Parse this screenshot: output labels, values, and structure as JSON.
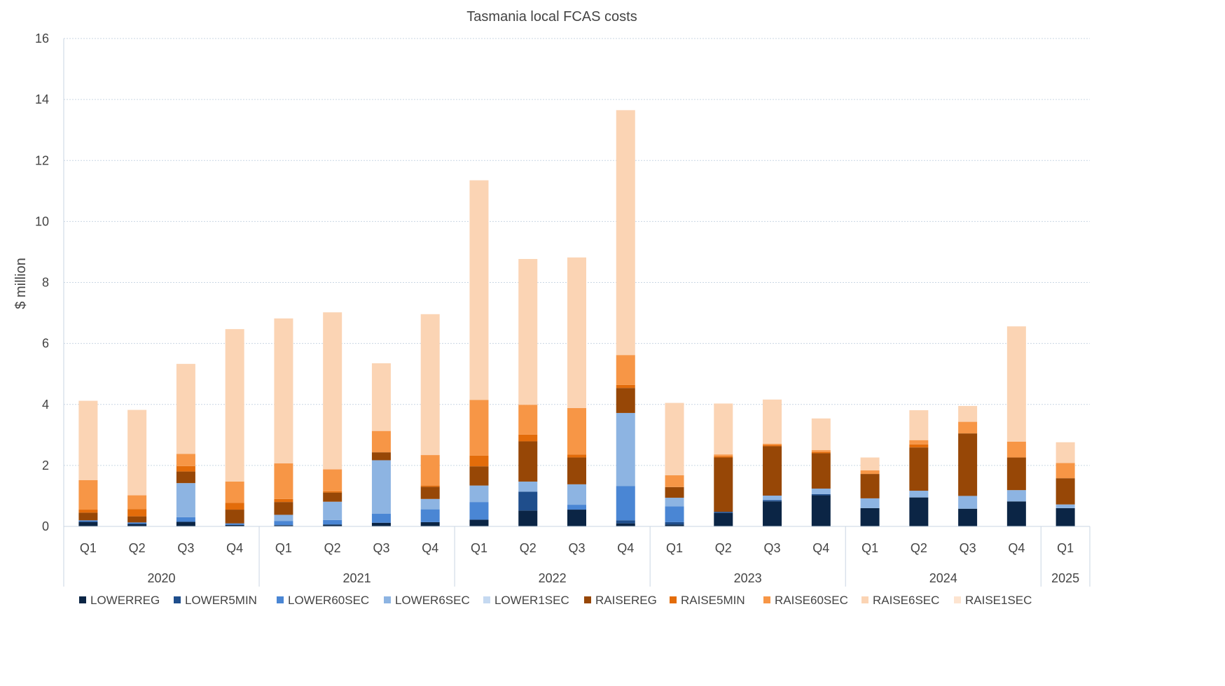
{
  "chart_data": {
    "type": "bar",
    "stacked": true,
    "title": "Tasmania local FCAS costs",
    "ylabel": "$ million",
    "xlabel": "",
    "ylim": [
      0,
      16
    ],
    "yticks": [
      0,
      2,
      4,
      6,
      8,
      10,
      12,
      14,
      16
    ],
    "grid": true,
    "legend_position": "bottom",
    "categories": [
      "Q1",
      "Q2",
      "Q3",
      "Q4",
      "Q1",
      "Q2",
      "Q3",
      "Q4",
      "Q1",
      "Q2",
      "Q3",
      "Q4",
      "Q1",
      "Q2",
      "Q3",
      "Q4",
      "Q1",
      "Q2",
      "Q3",
      "Q4",
      "Q1"
    ],
    "groups": [
      {
        "label": "2020",
        "count": 4
      },
      {
        "label": "2021",
        "count": 4
      },
      {
        "label": "2022",
        "count": 4
      },
      {
        "label": "2023",
        "count": 4
      },
      {
        "label": "2024",
        "count": 4
      },
      {
        "label": "2025",
        "count": 1
      }
    ],
    "series": [
      {
        "name": "LOWERREG",
        "color": "#0b2545",
        "values": [
          0.15,
          0.08,
          0.15,
          0.05,
          0.04,
          0.06,
          0.12,
          0.14,
          0.22,
          0.52,
          0.55,
          0.1,
          0.06,
          0.44,
          0.82,
          1.02,
          0.6,
          0.95,
          0.58,
          0.82,
          0.6
        ]
      },
      {
        "name": "LOWER5MIN",
        "color": "#1f4e8c",
        "values": [
          0.0,
          0.0,
          0.0,
          0.0,
          0.0,
          0.0,
          0.0,
          0.0,
          0.0,
          0.62,
          0.0,
          0.1,
          0.08,
          0.04,
          0.04,
          0.04,
          0.0,
          0.0,
          0.0,
          0.0,
          0.0
        ]
      },
      {
        "name": "LOWER60SEC",
        "color": "#4a86d4",
        "values": [
          0.05,
          0.05,
          0.15,
          0.05,
          0.14,
          0.15,
          0.3,
          0.42,
          0.58,
          0.0,
          0.16,
          1.12,
          0.52,
          0.0,
          0.0,
          0.0,
          0.0,
          0.0,
          0.0,
          0.0,
          0.0
        ]
      },
      {
        "name": "LOWER6SEC",
        "color": "#8db4e2",
        "values": [
          0.0,
          0.0,
          1.12,
          0.0,
          0.2,
          0.6,
          1.75,
          0.34,
          0.54,
          0.33,
          0.67,
          2.4,
          0.28,
          0.0,
          0.15,
          0.18,
          0.32,
          0.22,
          0.42,
          0.37,
          0.12
        ]
      },
      {
        "name": "LOWER1SEC",
        "color": "#c5d9f1",
        "values": [
          0.0,
          0.0,
          0.0,
          0.0,
          0.0,
          0.0,
          0.0,
          0.0,
          0.0,
          0.0,
          0.0,
          0.0,
          0.0,
          0.0,
          0.0,
          0.0,
          0.0,
          0.0,
          0.0,
          0.0,
          0.0
        ]
      },
      {
        "name": "RAISEREG",
        "color": "#974706",
        "values": [
          0.25,
          0.2,
          0.38,
          0.45,
          0.42,
          0.3,
          0.26,
          0.4,
          0.63,
          1.32,
          0.88,
          0.82,
          0.35,
          1.78,
          1.62,
          1.16,
          0.8,
          1.42,
          2.05,
          1.07,
          0.86
        ]
      },
      {
        "name": "RAISE5MIN",
        "color": "#e36c0a",
        "values": [
          0.1,
          0.24,
          0.18,
          0.22,
          0.1,
          0.04,
          0.0,
          0.04,
          0.35,
          0.22,
          0.1,
          0.1,
          0.0,
          0.04,
          0.04,
          0.04,
          0.0,
          0.1,
          0.0,
          0.0,
          0.0
        ]
      },
      {
        "name": "RAISE60SEC",
        "color": "#f79646",
        "values": [
          0.97,
          0.45,
          0.4,
          0.7,
          1.17,
          0.72,
          0.7,
          1.0,
          1.83,
          0.98,
          1.52,
          0.98,
          0.39,
          0.06,
          0.04,
          0.06,
          0.12,
          0.14,
          0.38,
          0.52,
          0.5
        ]
      },
      {
        "name": "RAISE6SEC",
        "color": "#fbd4b4",
        "values": [
          2.6,
          2.8,
          2.95,
          5.0,
          4.75,
          5.15,
          2.22,
          4.62,
          7.2,
          4.78,
          4.94,
          8.03,
          2.37,
          1.67,
          1.45,
          1.04,
          0.42,
          0.98,
          0.52,
          3.78,
          0.68
        ]
      },
      {
        "name": "RAISE1SEC",
        "color": "#fde4d0",
        "values": [
          0.0,
          0.0,
          0.0,
          0.0,
          0.0,
          0.0,
          0.0,
          0.0,
          0.0,
          0.0,
          0.0,
          0.0,
          0.0,
          0.0,
          0.0,
          0.0,
          0.0,
          0.0,
          0.0,
          0.0,
          0.0
        ]
      }
    ]
  },
  "colors": {
    "grid": "#c9d6e3",
    "axis": "#c9d6e3",
    "text": "#444444"
  }
}
